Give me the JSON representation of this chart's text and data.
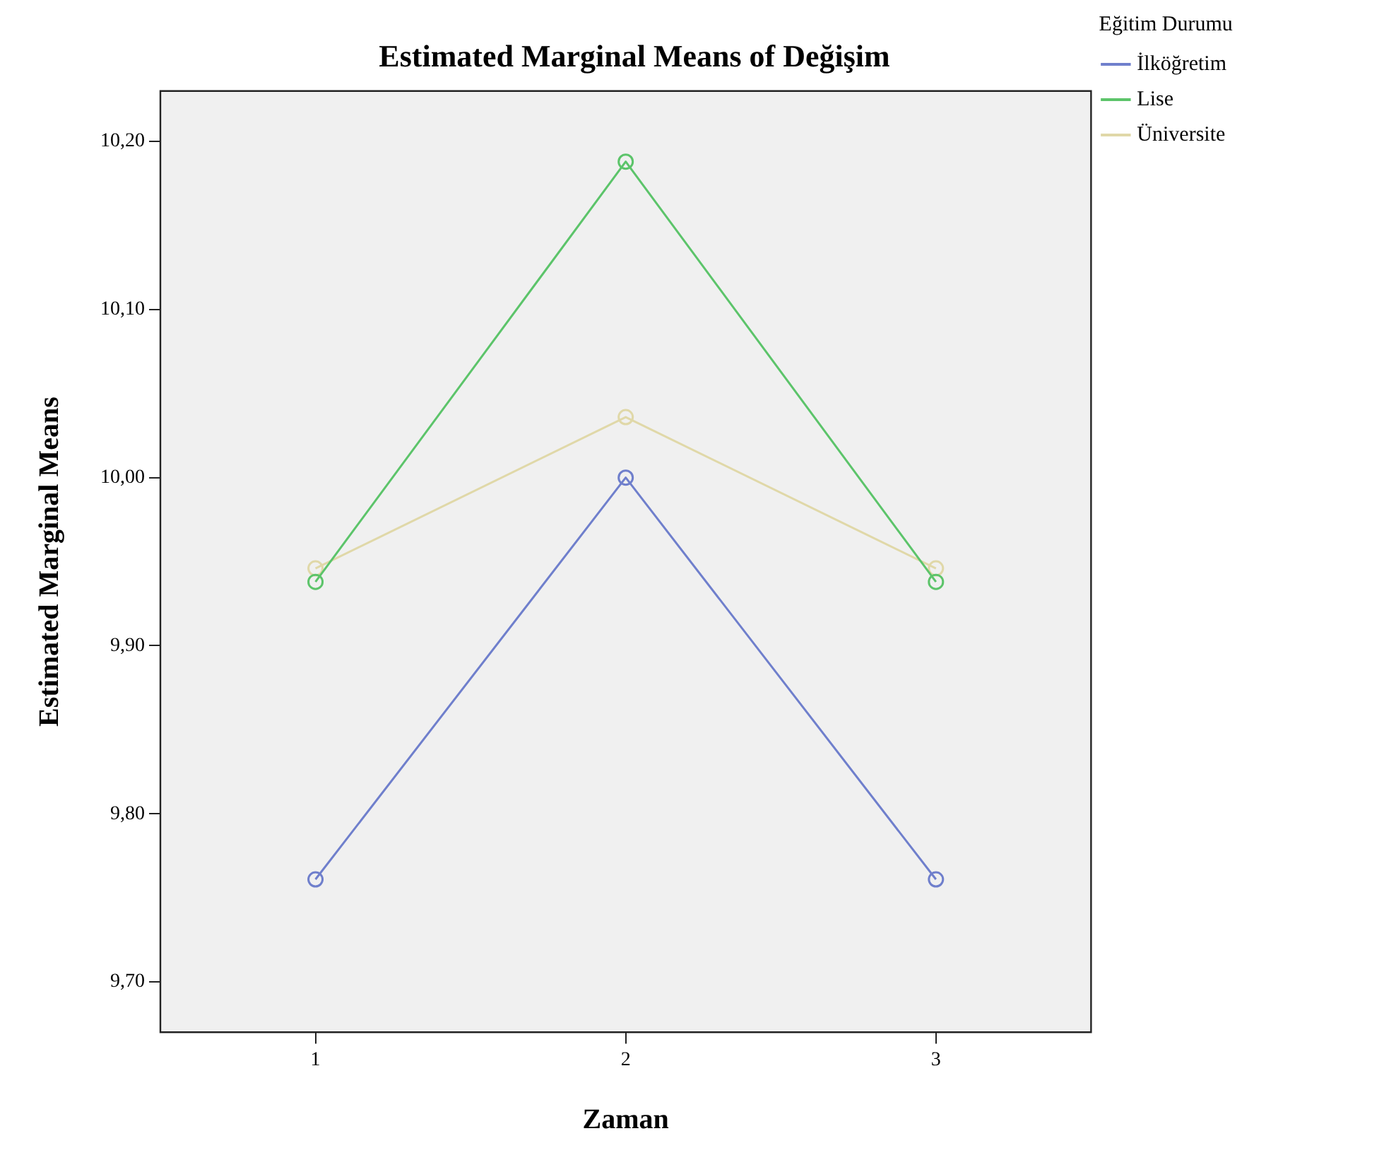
{
  "chart_data": {
    "type": "line",
    "title": "Estimated Marginal Means of Değişim",
    "xlabel": "Zaman",
    "ylabel": "Estimated Marginal Means",
    "legend_title": "Eğitim Durumu",
    "categories": [
      "1",
      "2",
      "3"
    ],
    "series": [
      {
        "name": "İlköğretim",
        "color": "#6f7fcc",
        "values": [
          9.761,
          10.0,
          9.761
        ]
      },
      {
        "name": "Lise",
        "color": "#5cc46a",
        "values": [
          9.938,
          10.188,
          9.938
        ]
      },
      {
        "name": "Üniversite",
        "color": "#e0d8a8",
        "values": [
          9.946,
          10.036,
          9.946
        ]
      }
    ],
    "ylim": [
      9.67,
      10.23
    ],
    "yticks": [
      {
        "value": 9.7,
        "label": "9,70"
      },
      {
        "value": 9.8,
        "label": "9,80"
      },
      {
        "value": 9.9,
        "label": "9,90"
      },
      {
        "value": 10.0,
        "label": "10,00"
      },
      {
        "value": 10.1,
        "label": "10,10"
      },
      {
        "value": 10.2,
        "label": "10,20"
      }
    ],
    "grid": false,
    "legend": "top right",
    "marker": "circle",
    "line_style": "solid"
  }
}
